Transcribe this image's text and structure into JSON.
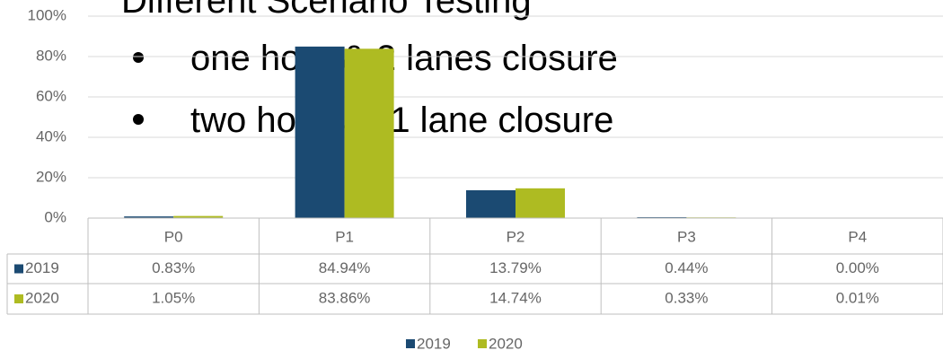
{
  "chart_data": {
    "type": "bar",
    "title": "Different Scenario Testing",
    "annotations": [
      "one hour & 2 lanes closure",
      "two hours & 1 lane closure"
    ],
    "categories": [
      "P0",
      "P1",
      "P2",
      "P3",
      "P4"
    ],
    "series": [
      {
        "name": "2019",
        "color": "#1b4a72",
        "values": [
          0.83,
          84.94,
          13.79,
          0.44,
          0.0
        ],
        "value_labels": [
          "0.83%",
          "84.94%",
          "13.79%",
          "0.44%",
          "0.00%"
        ]
      },
      {
        "name": "2020",
        "color": "#aebb22",
        "values": [
          1.05,
          83.86,
          14.74,
          0.33,
          0.01
        ],
        "value_labels": [
          "1.05%",
          "83.86%",
          "14.74%",
          "0.33%",
          "0.01%"
        ]
      }
    ],
    "ylim": [
      0,
      100
    ],
    "yticks": [
      {
        "value": 0,
        "label": "0%"
      },
      {
        "value": 20,
        "label": "20%"
      },
      {
        "value": 40,
        "label": "40%"
      },
      {
        "value": 60,
        "label": "60%"
      },
      {
        "value": 80,
        "label": "80%"
      },
      {
        "value": 100,
        "label": "100%"
      }
    ],
    "grid": true,
    "legend": "bottom"
  }
}
